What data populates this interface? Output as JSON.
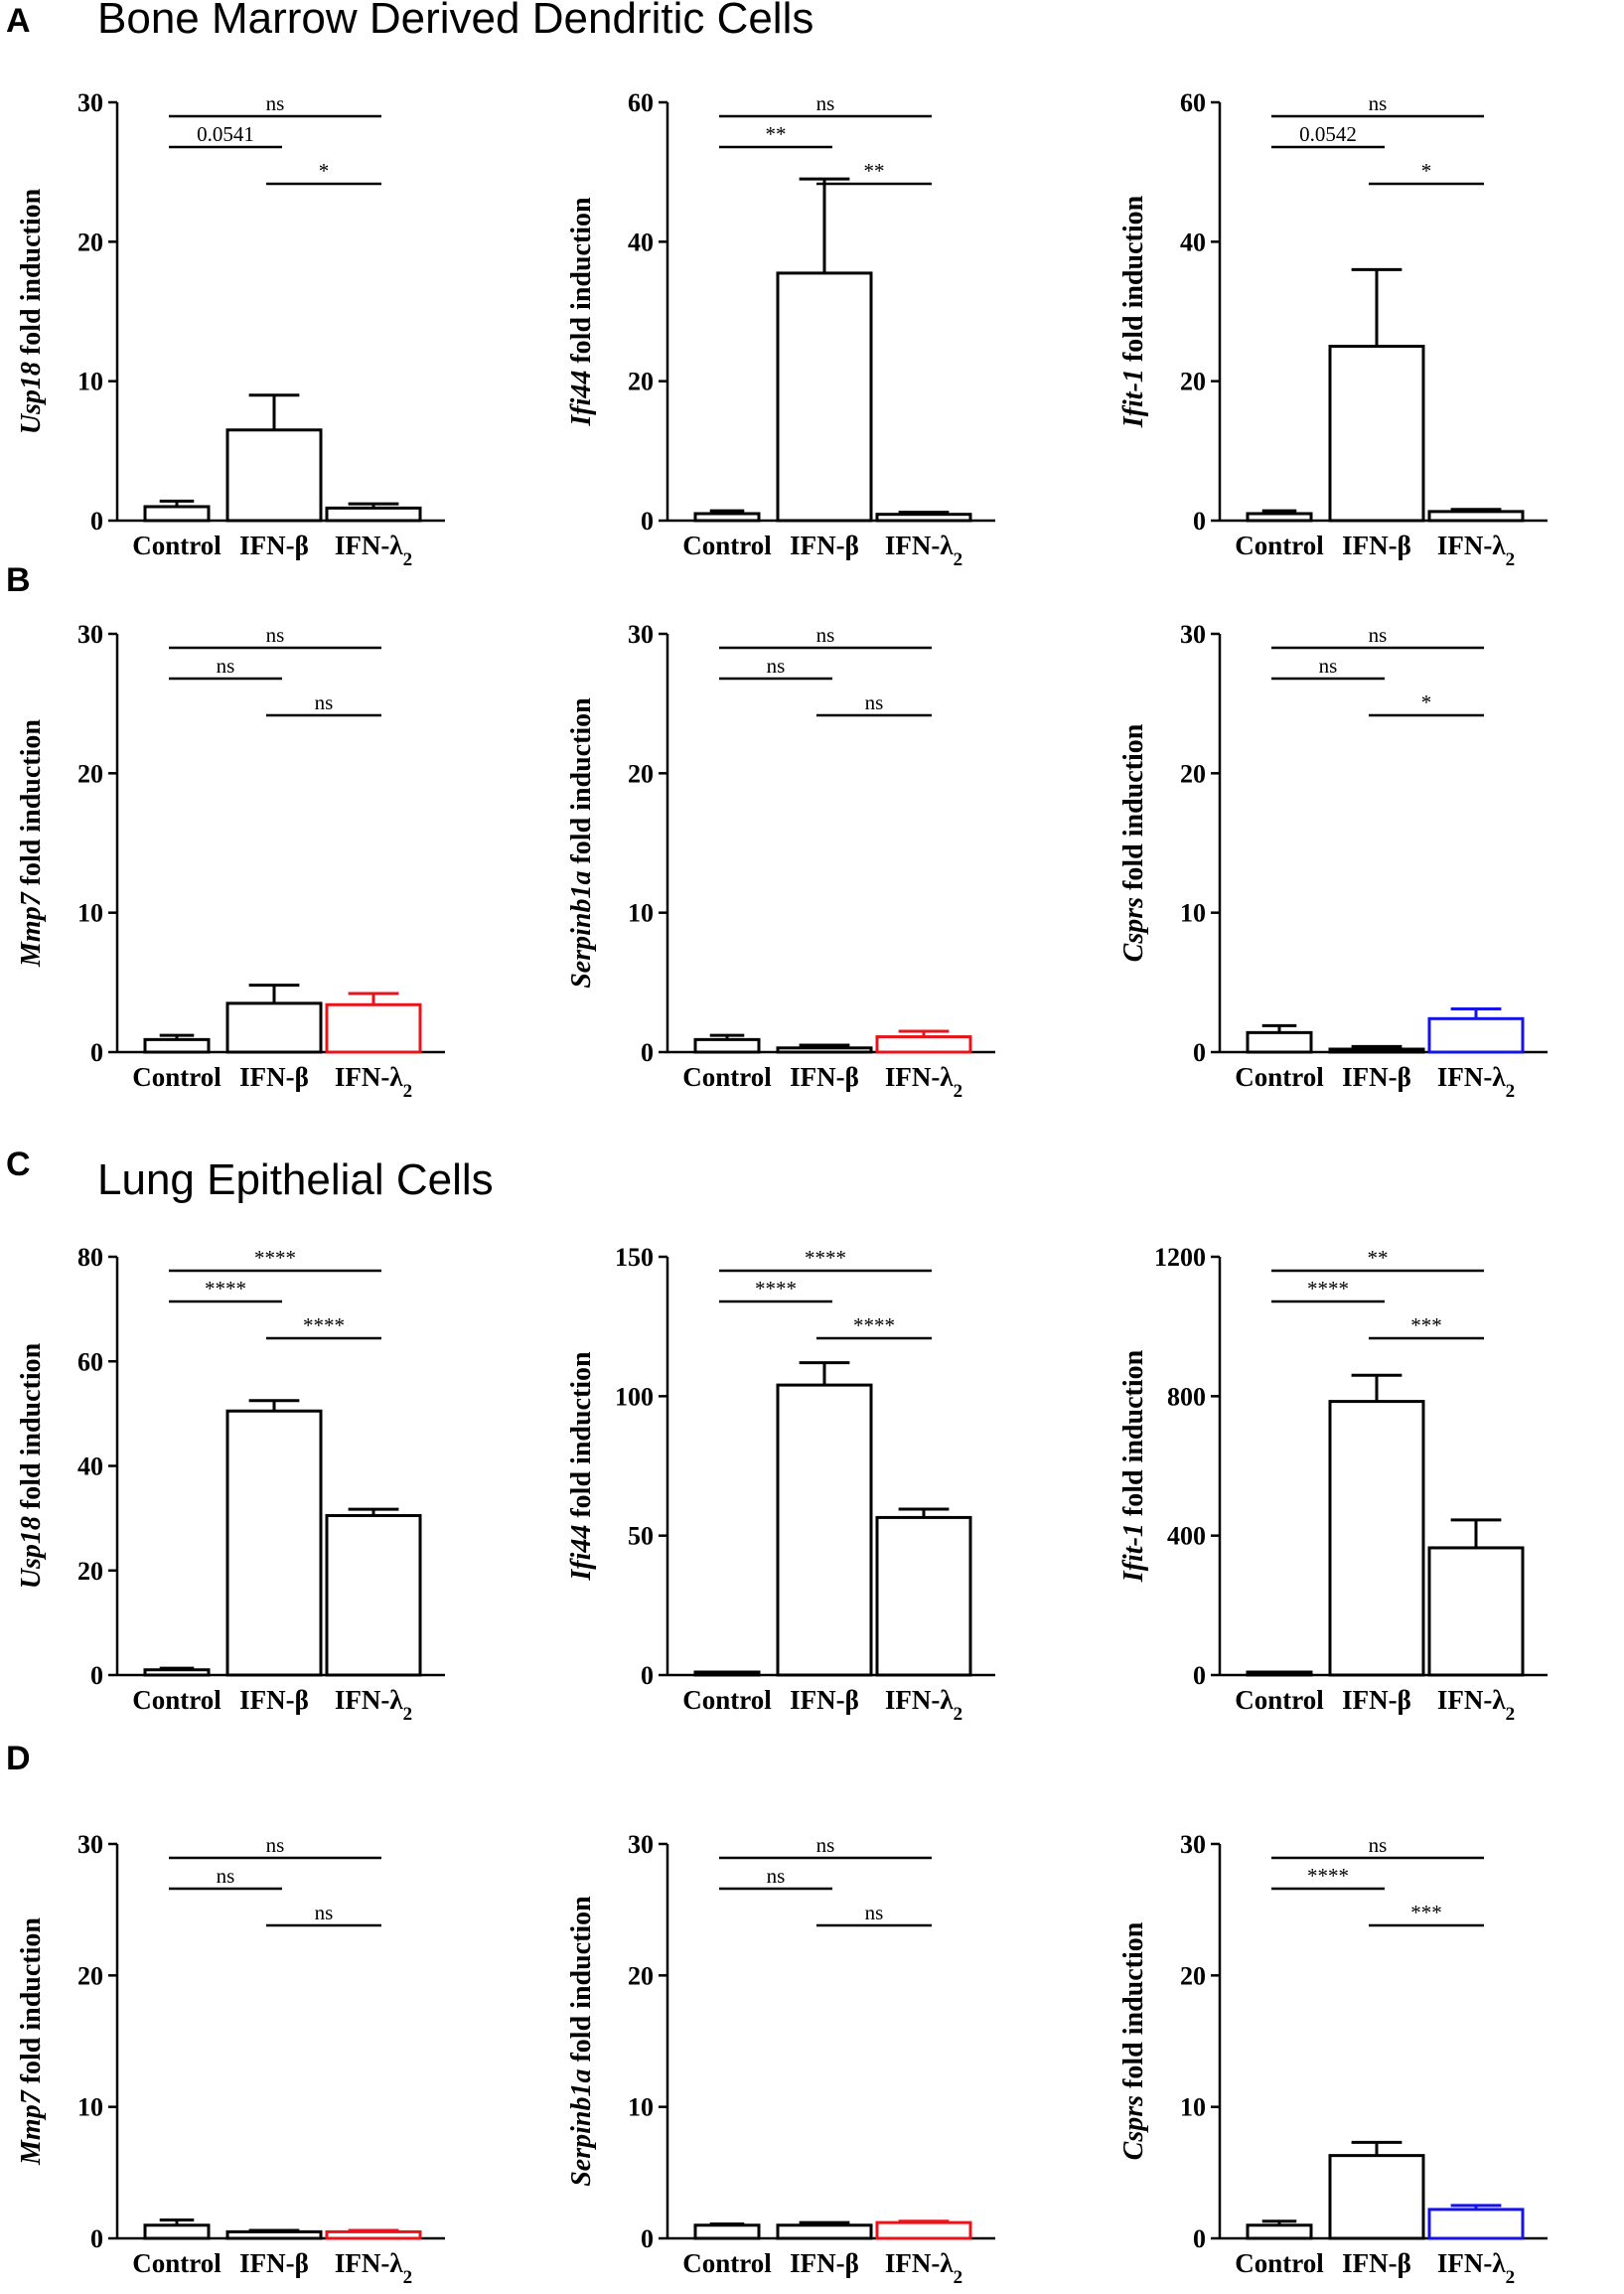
{
  "panel_letters": {
    "a": "A",
    "b": "B",
    "c": "C",
    "d": "D"
  },
  "section_titles": {
    "bmdc": "Bone Marrow Derived Dendritic Cells",
    "lung": "Lung Epithelial Cells"
  },
  "fold_suffix": "fold induction",
  "colors": {
    "black": "#000000",
    "red": "#e8141c",
    "blue": "#1414e6"
  },
  "chart_data": [
    {
      "type": "bar",
      "panel": "A",
      "gene": "Usp18",
      "ylabel": "Usp18 fold induction",
      "ylim": [
        0,
        30
      ],
      "yticks": [
        "0",
        "10",
        "20",
        "30"
      ],
      "categories": [
        "Control",
        "IFN-β",
        "IFN-λ2"
      ],
      "values": [
        1.0,
        6.5,
        0.9
      ],
      "errors": [
        0.4,
        2.5,
        0.3
      ],
      "bar_colors": [
        "#000000",
        "#000000",
        "#000000"
      ],
      "comparisons": [
        {
          "pair": [
            0,
            2
          ],
          "label": "ns"
        },
        {
          "pair": [
            0,
            1
          ],
          "label": "0.0541"
        },
        {
          "pair": [
            1,
            2
          ],
          "label": "*"
        }
      ]
    },
    {
      "type": "bar",
      "panel": "A",
      "gene": "Ifi44",
      "ylabel": "Ifi44 fold induction",
      "ylim": [
        0,
        60
      ],
      "yticks": [
        "0",
        "20",
        "40",
        "60"
      ],
      "categories": [
        "Control",
        "IFN-β",
        "IFN-λ2"
      ],
      "values": [
        1.0,
        35.5,
        0.9
      ],
      "errors": [
        0.4,
        13.5,
        0.3
      ],
      "bar_colors": [
        "#000000",
        "#000000",
        "#000000"
      ],
      "comparisons": [
        {
          "pair": [
            0,
            2
          ],
          "label": "ns"
        },
        {
          "pair": [
            0,
            1
          ],
          "label": "**"
        },
        {
          "pair": [
            1,
            2
          ],
          "label": "**"
        }
      ]
    },
    {
      "type": "bar",
      "panel": "A",
      "gene": "Ifit-1",
      "ylabel": "Ifit-1 fold induction",
      "ylim": [
        0,
        60
      ],
      "yticks": [
        "0",
        "20",
        "40",
        "60"
      ],
      "categories": [
        "Control",
        "IFN-β",
        "IFN-λ2"
      ],
      "values": [
        1.0,
        25.0,
        1.3
      ],
      "errors": [
        0.4,
        11.0,
        0.3
      ],
      "bar_colors": [
        "#000000",
        "#000000",
        "#000000"
      ],
      "comparisons": [
        {
          "pair": [
            0,
            2
          ],
          "label": "ns"
        },
        {
          "pair": [
            0,
            1
          ],
          "label": "0.0542"
        },
        {
          "pair": [
            1,
            2
          ],
          "label": "*"
        }
      ]
    },
    {
      "type": "bar",
      "panel": "B",
      "gene": "Mmp7",
      "ylabel": "Mmp7 fold induction",
      "ylim": [
        0,
        30
      ],
      "yticks": [
        "0",
        "10",
        "20",
        "30"
      ],
      "categories": [
        "Control",
        "IFN-β",
        "IFN-λ2"
      ],
      "values": [
        0.9,
        3.5,
        3.4
      ],
      "errors": [
        0.3,
        1.3,
        0.8
      ],
      "bar_colors": [
        "#000000",
        "#000000",
        "#e8141c"
      ],
      "comparisons": [
        {
          "pair": [
            0,
            2
          ],
          "label": "ns"
        },
        {
          "pair": [
            0,
            1
          ],
          "label": "ns"
        },
        {
          "pair": [
            1,
            2
          ],
          "label": "ns"
        }
      ]
    },
    {
      "type": "bar",
      "panel": "B",
      "gene": "Serpinb1a",
      "ylabel": "Serpinb1a fold induction",
      "ylim": [
        0,
        30
      ],
      "yticks": [
        "0",
        "10",
        "20",
        "30"
      ],
      "categories": [
        "Control",
        "IFN-β",
        "IFN-λ2"
      ],
      "values": [
        0.9,
        0.3,
        1.1
      ],
      "errors": [
        0.3,
        0.2,
        0.4
      ],
      "bar_colors": [
        "#000000",
        "#000000",
        "#e8141c"
      ],
      "comparisons": [
        {
          "pair": [
            0,
            2
          ],
          "label": "ns"
        },
        {
          "pair": [
            0,
            1
          ],
          "label": "ns"
        },
        {
          "pair": [
            1,
            2
          ],
          "label": "ns"
        }
      ]
    },
    {
      "type": "bar",
      "panel": "B",
      "gene": "Csprs",
      "ylabel": "Csprs fold induction",
      "ylim": [
        0,
        30
      ],
      "yticks": [
        "0",
        "10",
        "20",
        "30"
      ],
      "categories": [
        "Control",
        "IFN-β",
        "IFN-λ2"
      ],
      "values": [
        1.4,
        0.2,
        2.4
      ],
      "errors": [
        0.5,
        0.2,
        0.7
      ],
      "bar_colors": [
        "#000000",
        "#000000",
        "#1414e6"
      ],
      "comparisons": [
        {
          "pair": [
            0,
            2
          ],
          "label": "ns"
        },
        {
          "pair": [
            0,
            1
          ],
          "label": "ns"
        },
        {
          "pair": [
            1,
            2
          ],
          "label": "*"
        }
      ]
    },
    {
      "type": "bar",
      "panel": "C",
      "gene": "Usp18",
      "ylabel": "Usp18 fold induction",
      "ylim": [
        0,
        80
      ],
      "yticks": [
        "0",
        "20",
        "40",
        "60",
        "80"
      ],
      "categories": [
        "Control",
        "IFN-β",
        "IFN-λ2"
      ],
      "values": [
        1.0,
        50.5,
        30.5
      ],
      "errors": [
        0.3,
        2.0,
        1.2
      ],
      "bar_colors": [
        "#000000",
        "#000000",
        "#000000"
      ],
      "comparisons": [
        {
          "pair": [
            0,
            2
          ],
          "label": "****"
        },
        {
          "pair": [
            0,
            1
          ],
          "label": "****"
        },
        {
          "pair": [
            1,
            2
          ],
          "label": "****"
        }
      ]
    },
    {
      "type": "bar",
      "panel": "C",
      "gene": "Ifi44",
      "ylabel": "Ifi44 fold induction",
      "ylim": [
        0,
        150
      ],
      "yticks": [
        "0",
        "50",
        "100",
        "150"
      ],
      "categories": [
        "Control",
        "IFN-β",
        "IFN-λ2"
      ],
      "values": [
        0.5,
        104.0,
        56.5
      ],
      "errors": [
        0.3,
        8.0,
        3.0
      ],
      "bar_colors": [
        "#000000",
        "#000000",
        "#000000"
      ],
      "comparisons": [
        {
          "pair": [
            0,
            2
          ],
          "label": "****"
        },
        {
          "pair": [
            0,
            1
          ],
          "label": "****"
        },
        {
          "pair": [
            1,
            2
          ],
          "label": "****"
        }
      ]
    },
    {
      "type": "bar",
      "panel": "C",
      "gene": "Ifit-1",
      "ylabel": "Ifit-1 fold induction",
      "ylim": [
        0,
        1200
      ],
      "yticks": [
        "0",
        "400",
        "800",
        "1200"
      ],
      "categories": [
        "Control",
        "IFN-β",
        "IFN-λ2"
      ],
      "values": [
        1,
        785,
        365
      ],
      "errors": [
        1,
        75,
        80
      ],
      "bar_colors": [
        "#000000",
        "#000000",
        "#000000"
      ],
      "comparisons": [
        {
          "pair": [
            0,
            2
          ],
          "label": "**"
        },
        {
          "pair": [
            0,
            1
          ],
          "label": "****"
        },
        {
          "pair": [
            1,
            2
          ],
          "label": "***"
        }
      ]
    },
    {
      "type": "bar",
      "panel": "D",
      "gene": "Mmp7",
      "ylabel": "Mmp7 fold induction",
      "ylim": [
        0,
        30
      ],
      "yticks": [
        "0",
        "10",
        "20",
        "30"
      ],
      "categories": [
        "Control",
        "IFN-β",
        "IFN-λ2"
      ],
      "values": [
        1.0,
        0.5,
        0.5
      ],
      "errors": [
        0.4,
        0.1,
        0.1
      ],
      "bar_colors": [
        "#000000",
        "#000000",
        "#e8141c"
      ],
      "comparisons": [
        {
          "pair": [
            0,
            2
          ],
          "label": "ns"
        },
        {
          "pair": [
            0,
            1
          ],
          "label": "ns"
        },
        {
          "pair": [
            1,
            2
          ],
          "label": "ns"
        }
      ]
    },
    {
      "type": "bar",
      "panel": "D",
      "gene": "Serpinb1a",
      "ylabel": "Serpinb1a fold induction",
      "ylim": [
        0,
        30
      ],
      "yticks": [
        "0",
        "10",
        "20",
        "30"
      ],
      "categories": [
        "Control",
        "IFN-β",
        "IFN-λ2"
      ],
      "values": [
        1.0,
        1.0,
        1.2
      ],
      "errors": [
        0.1,
        0.2,
        0.1
      ],
      "bar_colors": [
        "#000000",
        "#000000",
        "#e8141c"
      ],
      "comparisons": [
        {
          "pair": [
            0,
            2
          ],
          "label": "ns"
        },
        {
          "pair": [
            0,
            1
          ],
          "label": "ns"
        },
        {
          "pair": [
            1,
            2
          ],
          "label": "ns"
        }
      ]
    },
    {
      "type": "bar",
      "panel": "D",
      "gene": "Csprs",
      "ylabel": "Csprs fold induction",
      "ylim": [
        0,
        30
      ],
      "yticks": [
        "0",
        "10",
        "20",
        "30"
      ],
      "categories": [
        "Control",
        "IFN-β",
        "IFN-λ2"
      ],
      "values": [
        1.0,
        6.3,
        2.2
      ],
      "errors": [
        0.3,
        1.0,
        0.3
      ],
      "bar_colors": [
        "#000000",
        "#000000",
        "#1414e6"
      ],
      "comparisons": [
        {
          "pair": [
            0,
            2
          ],
          "label": "ns"
        },
        {
          "pair": [
            0,
            1
          ],
          "label": "****"
        },
        {
          "pair": [
            1,
            2
          ],
          "label": "***"
        }
      ]
    }
  ]
}
